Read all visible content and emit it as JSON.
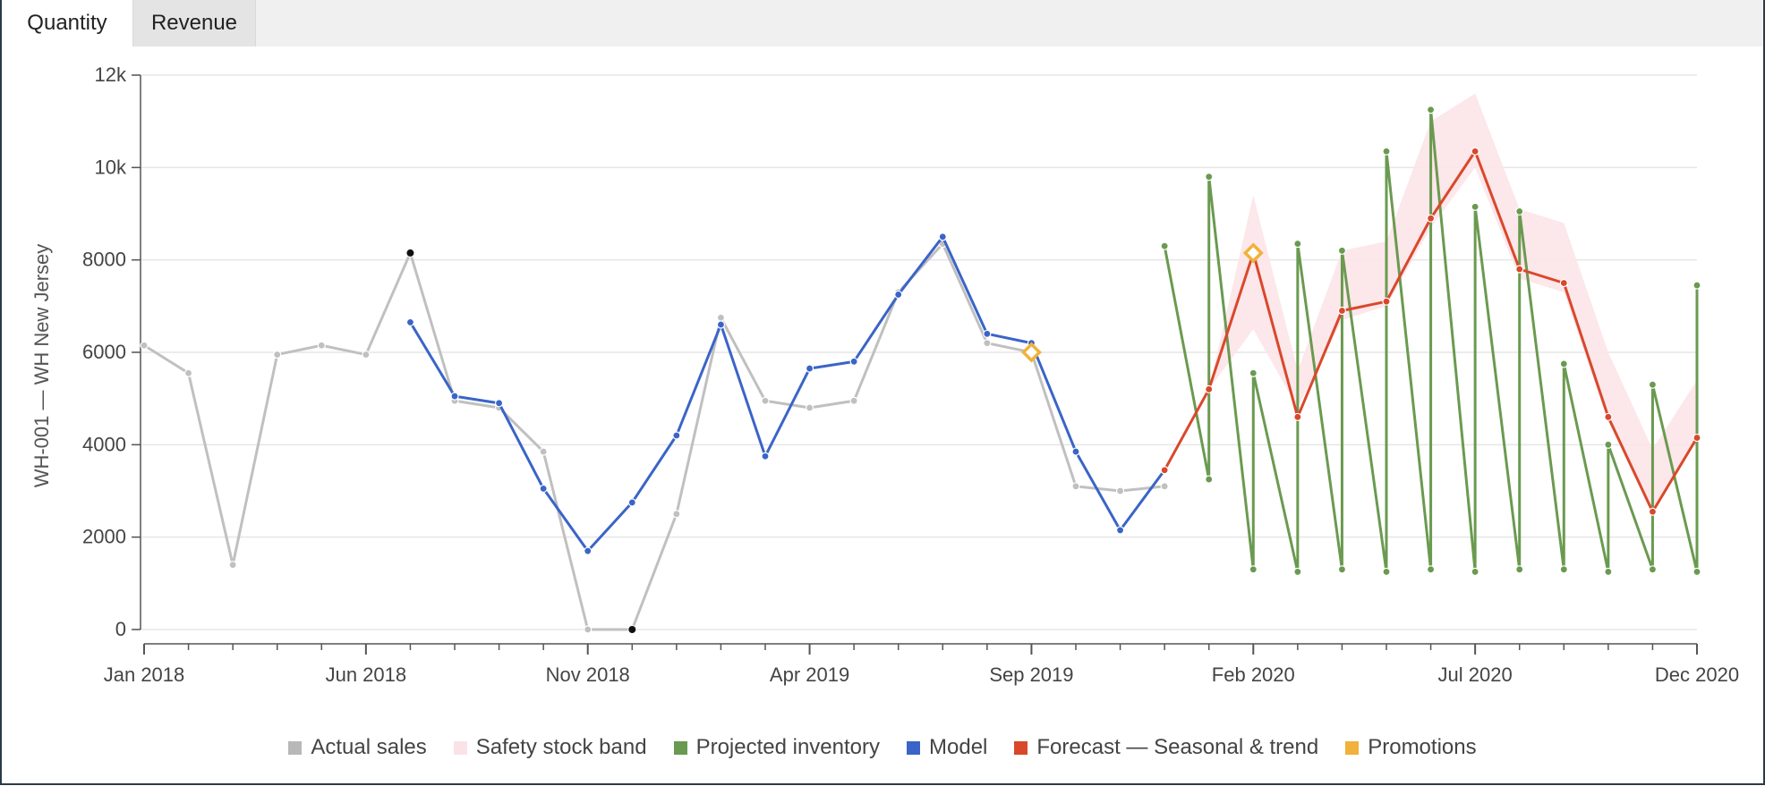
{
  "tabs": [
    {
      "label": "Quantity",
      "active": true
    },
    {
      "label": "Revenue",
      "active": false
    }
  ],
  "chart_data": {
    "type": "line",
    "ylabel": "WH-001 — WH New Jersey",
    "xlabel": "",
    "ylim": [
      0,
      12000
    ],
    "xlim": [
      "2018-01",
      "2020-12"
    ],
    "y_ticks": [
      "0",
      "2000",
      "4000",
      "6000",
      "8000",
      "10k",
      "12k"
    ],
    "y_tick_values": [
      0,
      2000,
      4000,
      6000,
      8000,
      10000,
      12000
    ],
    "x_tick_labels": [
      {
        "date": "2018-01",
        "label": "Jan 2018"
      },
      {
        "date": "2018-06",
        "label": "Jun 2018"
      },
      {
        "date": "2018-11",
        "label": "Nov 2018"
      },
      {
        "date": "2019-04",
        "label": "Apr 2019"
      },
      {
        "date": "2019-09",
        "label": "Sep 2019"
      },
      {
        "date": "2020-02",
        "label": "Feb 2020"
      },
      {
        "date": "2020-07",
        "label": "Jul 2020"
      },
      {
        "date": "2020-12",
        "label": "Dec 2020"
      }
    ],
    "grid": true,
    "legend_position": "bottom",
    "series": [
      {
        "name": "Actual sales",
        "color": "#c0c0c0",
        "points": [
          [
            "2018-01",
            6150
          ],
          [
            "2018-02",
            5550
          ],
          [
            "2018-03",
            1400
          ],
          [
            "2018-04",
            5950
          ],
          [
            "2018-05",
            6150
          ],
          [
            "2018-06",
            5950
          ],
          [
            "2018-07",
            8150
          ],
          [
            "2018-08",
            4950
          ],
          [
            "2018-09",
            4800
          ],
          [
            "2018-10",
            3850
          ],
          [
            "2018-11",
            0
          ],
          [
            "2018-12",
            0
          ],
          [
            "2019-01",
            2500
          ],
          [
            "2019-02",
            6750
          ],
          [
            "2019-03",
            4950
          ],
          [
            "2019-04",
            4800
          ],
          [
            "2019-05",
            4950
          ],
          [
            "2019-06",
            7300
          ],
          [
            "2019-07",
            8350
          ],
          [
            "2019-08",
            6200
          ],
          [
            "2019-09",
            6000
          ],
          [
            "2019-10",
            3100
          ],
          [
            "2019-11",
            3000
          ],
          [
            "2019-12",
            3100
          ]
        ],
        "highlighted": [
          [
            "2018-07",
            8150
          ],
          [
            "2018-12",
            0
          ]
        ]
      },
      {
        "name": "Model",
        "color": "#3a64c8",
        "points": [
          [
            "2018-07",
            6650
          ],
          [
            "2018-08",
            5050
          ],
          [
            "2018-09",
            4900
          ],
          [
            "2018-10",
            3050
          ],
          [
            "2018-11",
            1700
          ],
          [
            "2018-12",
            2750
          ],
          [
            "2019-01",
            4200
          ],
          [
            "2019-02",
            6600
          ],
          [
            "2019-03",
            3750
          ],
          [
            "2019-04",
            5650
          ],
          [
            "2019-05",
            5800
          ],
          [
            "2019-06",
            7250
          ],
          [
            "2019-07",
            8500
          ],
          [
            "2019-08",
            6400
          ],
          [
            "2019-09",
            6200
          ],
          [
            "2019-10",
            3850
          ],
          [
            "2019-11",
            2150
          ],
          [
            "2019-12",
            3450
          ]
        ]
      },
      {
        "name": "Forecast — Seasonal & trend",
        "color": "#d9482b",
        "points": [
          [
            "2019-12",
            3450
          ],
          [
            "2020-01",
            5200
          ],
          [
            "2020-02",
            8150
          ],
          [
            "2020-03",
            4600
          ],
          [
            "2020-04",
            6900
          ],
          [
            "2020-05",
            7100
          ],
          [
            "2020-06",
            8900
          ],
          [
            "2020-07",
            10350
          ],
          [
            "2020-08",
            7800
          ],
          [
            "2020-09",
            7500
          ],
          [
            "2020-10",
            4600
          ],
          [
            "2020-11",
            2550
          ],
          [
            "2020-12",
            4150
          ]
        ]
      },
      {
        "name": "Safety stock band",
        "color": "#fce4e8",
        "band": [
          [
            "2020-01",
            5200,
            5200
          ],
          [
            "2020-02",
            6500,
            9400
          ],
          [
            "2020-03",
            4800,
            5600
          ],
          [
            "2020-04",
            6700,
            8200
          ],
          [
            "2020-05",
            7000,
            8400
          ],
          [
            "2020-06",
            8700,
            11000
          ],
          [
            "2020-07",
            10000,
            11600
          ],
          [
            "2020-08",
            7600,
            9100
          ],
          [
            "2020-09",
            7300,
            8800
          ],
          [
            "2020-10",
            4500,
            6000
          ],
          [
            "2020-11",
            2500,
            3900
          ],
          [
            "2020-12",
            4100,
            5400
          ]
        ]
      },
      {
        "name": "Projected inventory",
        "color": "#6a9a50",
        "points": [
          [
            "2019-12",
            8300
          ],
          [
            "2020-01",
            3250
          ],
          [
            "2020-01",
            9800
          ],
          [
            "2020-02",
            1300
          ],
          [
            "2020-02",
            5550
          ],
          [
            "2020-03",
            1250
          ],
          [
            "2020-03",
            8350
          ],
          [
            "2020-04",
            1300
          ],
          [
            "2020-04",
            8200
          ],
          [
            "2020-05",
            1250
          ],
          [
            "2020-05",
            10350
          ],
          [
            "2020-06",
            1300
          ],
          [
            "2020-06",
            11250
          ],
          [
            "2020-07",
            1250
          ],
          [
            "2020-07",
            9150
          ],
          [
            "2020-08",
            1300
          ],
          [
            "2020-08",
            9050
          ],
          [
            "2020-09",
            1300
          ],
          [
            "2020-09",
            5750
          ],
          [
            "2020-10",
            1250
          ],
          [
            "2020-10",
            4000
          ],
          [
            "2020-11",
            1300
          ],
          [
            "2020-11",
            5300
          ],
          [
            "2020-12",
            1250
          ],
          [
            "2020-12",
            7450
          ]
        ]
      },
      {
        "name": "Promotions",
        "color": "#f0b23a",
        "points": [
          [
            "2019-09",
            6000
          ],
          [
            "2020-02",
            8150
          ]
        ]
      }
    ]
  },
  "legend": [
    {
      "label": "Actual sales",
      "color": "#b8b8b8"
    },
    {
      "label": "Safety stock band",
      "color": "#fbe2e6"
    },
    {
      "label": "Projected inventory",
      "color": "#6a9a50"
    },
    {
      "label": "Model",
      "color": "#3a64c8"
    },
    {
      "label": "Forecast — Seasonal & trend",
      "color": "#d9482b"
    },
    {
      "label": "Promotions",
      "color": "#f0b23a"
    }
  ]
}
